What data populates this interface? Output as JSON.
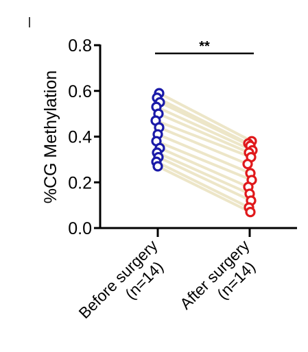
{
  "chart_data": {
    "type": "scatter",
    "subtype": "paired-before-after",
    "ylabel": "%CG Methylation",
    "ylim": [
      0.0,
      0.8
    ],
    "yticks": [
      "0.0",
      "0.2",
      "0.4",
      "0.6",
      "0.8"
    ],
    "categories": [
      {
        "line1": "Before surgery",
        "line2": "(n=14)"
      },
      {
        "line1": "After surgery",
        "line2": "(n=14)"
      }
    ],
    "significance": "**",
    "colors": {
      "before": "#1a1aa8",
      "after": "#e0191b",
      "pair_line": "#ede6c8",
      "axis": "#000000"
    },
    "pairs": [
      {
        "before": 0.59,
        "after": 0.38
      },
      {
        "before": 0.57,
        "after": 0.37
      },
      {
        "before": 0.55,
        "after": 0.36
      },
      {
        "before": 0.53,
        "after": 0.34
      },
      {
        "before": 0.5,
        "after": 0.33
      },
      {
        "before": 0.47,
        "after": 0.31
      },
      {
        "before": 0.44,
        "after": 0.28
      },
      {
        "before": 0.41,
        "after": 0.24
      },
      {
        "before": 0.38,
        "after": 0.21
      },
      {
        "before": 0.35,
        "after": 0.18
      },
      {
        "before": 0.33,
        "after": 0.15
      },
      {
        "before": 0.31,
        "after": 0.12
      },
      {
        "before": 0.29,
        "after": 0.09
      },
      {
        "before": 0.27,
        "after": 0.07
      }
    ]
  }
}
